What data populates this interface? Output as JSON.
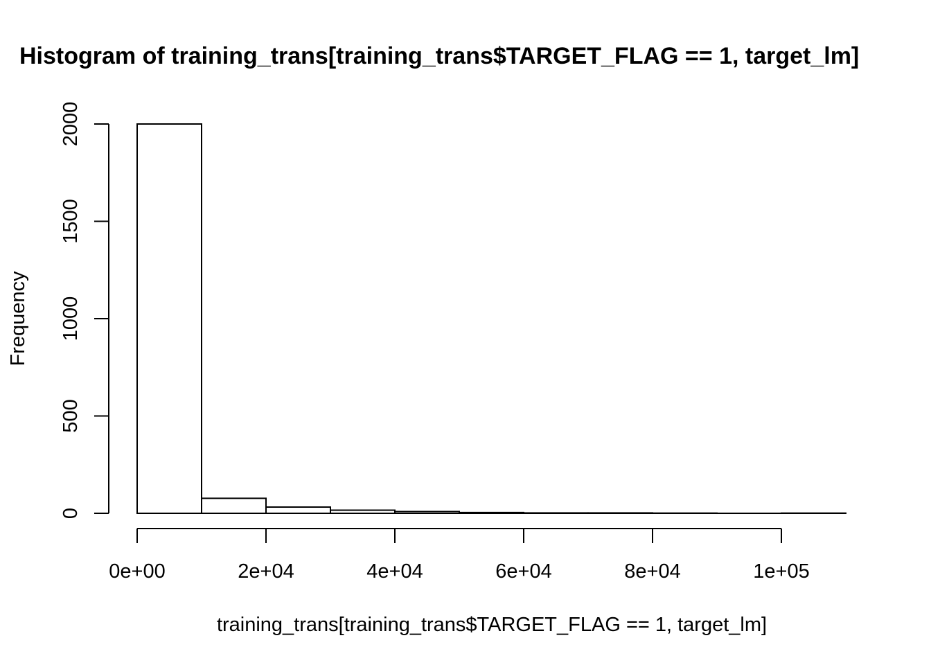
{
  "chart_data": {
    "type": "bar",
    "title": "Histogram of training_trans[training_trans$TARGET_FLAG == 1, target_lm]",
    "xlabel": "training_trans[training_trans$TARGET_FLAG == 1, target_lm]",
    "ylabel": "Frequency",
    "bins": [
      {
        "x0": 0,
        "x1": 10000,
        "count": 2000
      },
      {
        "x0": 10000,
        "x1": 20000,
        "count": 77
      },
      {
        "x0": 20000,
        "x1": 30000,
        "count": 32
      },
      {
        "x0": 30000,
        "x1": 40000,
        "count": 16
      },
      {
        "x0": 40000,
        "x1": 50000,
        "count": 9
      },
      {
        "x0": 50000,
        "x1": 60000,
        "count": 4
      },
      {
        "x0": 60000,
        "x1": 70000,
        "count": 2
      },
      {
        "x0": 70000,
        "x1": 80000,
        "count": 2
      },
      {
        "x0": 80000,
        "x1": 90000,
        "count": 1
      },
      {
        "x0": 90000,
        "x1": 100000,
        "count": 0
      },
      {
        "x0": 100000,
        "x1": 110000,
        "count": 1
      }
    ],
    "xlim": [
      0,
      110000
    ],
    "ylim": [
      0,
      2000
    ],
    "x_ticks": [
      {
        "value": 0,
        "label": "0e+00"
      },
      {
        "value": 20000,
        "label": "2e+04"
      },
      {
        "value": 40000,
        "label": "4e+04"
      },
      {
        "value": 60000,
        "label": "6e+04"
      },
      {
        "value": 80000,
        "label": "8e+04"
      },
      {
        "value": 100000,
        "label": "1e+05"
      }
    ],
    "y_ticks": [
      {
        "value": 0,
        "label": "0"
      },
      {
        "value": 500,
        "label": "500"
      },
      {
        "value": 1000,
        "label": "1000"
      },
      {
        "value": 1500,
        "label": "1500"
      },
      {
        "value": 2000,
        "label": "2000"
      }
    ],
    "grid": false,
    "legend": "none",
    "colors": {
      "bar_fill": "#ffffff",
      "bar_stroke": "#000000",
      "axis": "#000000",
      "text": "#000000"
    }
  }
}
